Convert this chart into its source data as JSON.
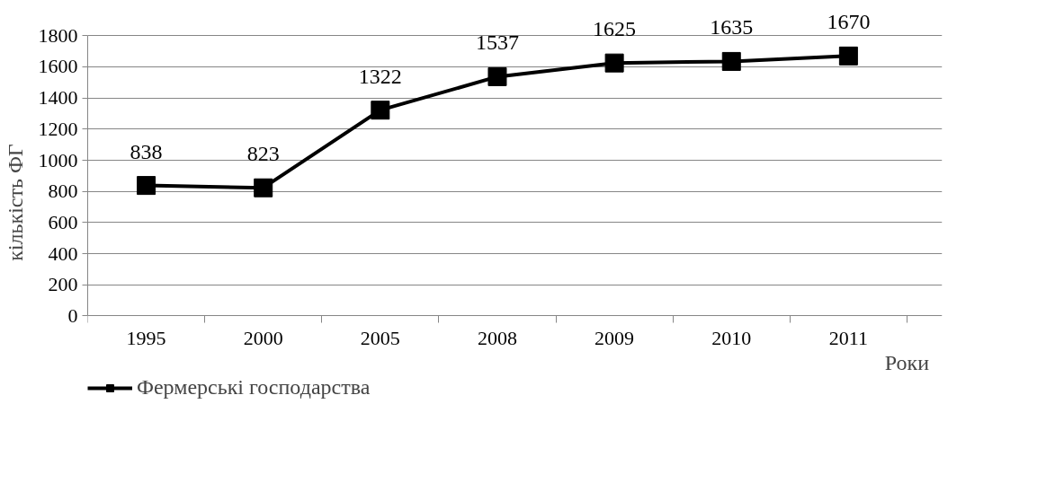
{
  "chart_data": {
    "type": "line",
    "xlabel": "Роки",
    "ylabel": "кількість ФГ",
    "categories": [
      "1995",
      "2000",
      "2005",
      "2008",
      "2009",
      "2010",
      "2011"
    ],
    "series": [
      {
        "name": "Фермерські господарства",
        "color": "#000000",
        "values": [
          838,
          823,
          1322,
          1537,
          1625,
          1635,
          1670
        ]
      }
    ],
    "ylim": [
      0,
      1800
    ],
    "yticks": [
      0,
      200,
      400,
      600,
      800,
      1000,
      1200,
      1400,
      1600,
      1800
    ],
    "grid": "y",
    "legend": "bottom left",
    "marker": "square",
    "line_style": "solid",
    "data_labels": true
  }
}
